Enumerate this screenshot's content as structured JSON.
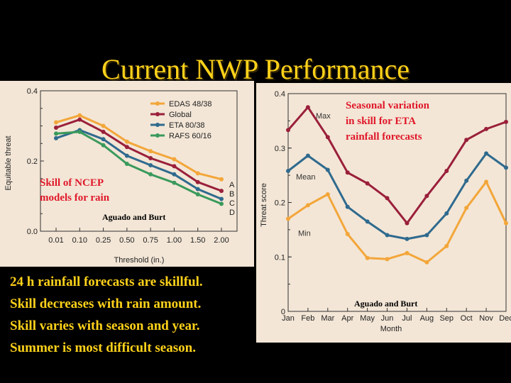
{
  "slide": {
    "title": "Current NWP Performance",
    "bullets": [
      "24 h rainfall forecasts are skillful.",
      "Skill decreases with rain amount.",
      "Skill varies with season and year.",
      "Summer is most difficult season."
    ]
  },
  "colors": {
    "title": "#ffd21a",
    "annotation": "#e0182a",
    "orange": "#f3a63a",
    "maroon": "#9a1f3a",
    "blue": "#2f6a8e",
    "green": "#3a9a5c",
    "panel": "#f3e6d6"
  },
  "chart_data": [
    {
      "type": "line",
      "xlabel": "Threshold (in.)",
      "ylabel": "Equitable threat",
      "categories": [
        "0.01",
        "0.10",
        "0.25",
        "0.50",
        "0.75",
        "1.00",
        "1.50",
        "2.00"
      ],
      "ylim": [
        0,
        0.4
      ],
      "yticks": [
        "0.0",
        "0.2",
        "0.4"
      ],
      "legend_position": "top-right",
      "series": [
        {
          "name": "EDAS 48/38",
          "color": "#f3a63a",
          "end_label": "A",
          "values": [
            0.31,
            0.33,
            0.3,
            0.255,
            0.228,
            0.205,
            0.165,
            0.148
          ]
        },
        {
          "name": "Global",
          "color": "#9a1f3a",
          "end_label": "B",
          "values": [
            0.295,
            0.318,
            0.283,
            0.24,
            0.208,
            0.185,
            0.14,
            0.115
          ]
        },
        {
          "name": "ETA 80/38",
          "color": "#2f6a8e",
          "end_label": "C",
          "values": [
            0.265,
            0.288,
            0.262,
            0.215,
            0.188,
            0.162,
            0.12,
            0.092
          ]
        },
        {
          "name": "RAFS 60/16",
          "color": "#3a9a5c",
          "end_label": "D",
          "values": [
            0.278,
            0.283,
            0.245,
            0.192,
            0.162,
            0.138,
            0.105,
            0.078
          ]
        }
      ],
      "annotations": {
        "skill_text": [
          "Skill of NCEP",
          "models for rain"
        ],
        "credit": "Aguado and Burt"
      }
    },
    {
      "type": "line",
      "xlabel": "Month",
      "ylabel": "Threat score",
      "categories": [
        "Jan",
        "Feb",
        "Mar",
        "Apr",
        "May",
        "Jun",
        "Jul",
        "Aug",
        "Sep",
        "Oct",
        "Nov",
        "Dec"
      ],
      "ylim": [
        0,
        0.4
      ],
      "yticks": [
        "0",
        "0.1",
        "0.2",
        "0.3",
        "0.4"
      ],
      "series": [
        {
          "name": "Max",
          "color": "#9a1f3a",
          "values": [
            0.333,
            0.375,
            0.32,
            0.255,
            0.235,
            0.208,
            0.162,
            0.212,
            0.258,
            0.315,
            0.335,
            0.348
          ]
        },
        {
          "name": "Mean",
          "color": "#2f6a8e",
          "values": [
            0.258,
            0.286,
            0.26,
            0.192,
            0.165,
            0.14,
            0.133,
            0.14,
            0.18,
            0.24,
            0.29,
            0.264
          ]
        },
        {
          "name": "Min",
          "color": "#f3a63a",
          "values": [
            0.17,
            0.195,
            0.215,
            0.142,
            0.098,
            0.096,
            0.107,
            0.09,
            0.12,
            0.19,
            0.238,
            0.162
          ]
        }
      ],
      "annotations": {
        "seasonal_text": [
          "Seasonal variation",
          "in skill for ETA",
          "rainfall forecasts"
        ],
        "credit": "Aguado and Burt"
      }
    }
  ]
}
